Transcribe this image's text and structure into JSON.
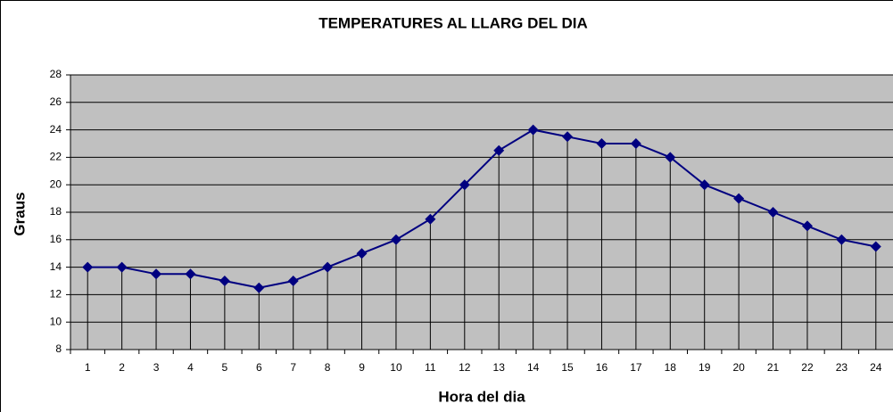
{
  "chart_data": {
    "type": "line",
    "title": "TEMPERATURES AL LLARG DEL DIA",
    "x_label": "Hora del dia",
    "y_label": "Graus",
    "categories": [
      "1",
      "2",
      "3",
      "4",
      "5",
      "6",
      "7",
      "8",
      "9",
      "10",
      "11",
      "12",
      "13",
      "14",
      "15",
      "16",
      "17",
      "18",
      "19",
      "20",
      "21",
      "22",
      "23",
      "24"
    ],
    "values": [
      14,
      14,
      13.5,
      13.5,
      13,
      12.5,
      13,
      14,
      15,
      16,
      17.5,
      20,
      22.5,
      24,
      23.5,
      23,
      23,
      22,
      20,
      19,
      18,
      17,
      16,
      15.5
    ],
    "color": "#000080",
    "ylim": [
      8,
      28
    ],
    "yticks": [
      8,
      10,
      12,
      14,
      16,
      18,
      20,
      22,
      24,
      26,
      28
    ],
    "grid": true,
    "drop_lines": true,
    "marker": "diamond"
  }
}
